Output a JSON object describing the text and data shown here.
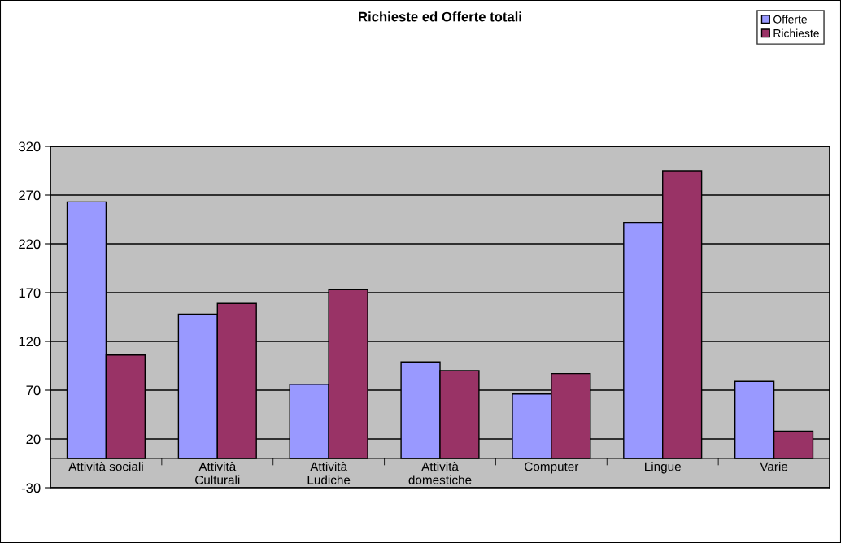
{
  "chart_data": {
    "type": "bar",
    "title": "Richieste ed Offerte totali",
    "categories": [
      "Attività sociali",
      "Attività\nCulturali",
      "Attività\nLudiche",
      "Attività\ndomestiche",
      "Computer",
      "Lingue",
      "Varie"
    ],
    "series": [
      {
        "name": "Offerte",
        "color": "#9999ff",
        "values": [
          263,
          148,
          76,
          99,
          66,
          242,
          79
        ]
      },
      {
        "name": "Richieste",
        "color": "#993366",
        "values": [
          106,
          159,
          173,
          90,
          87,
          295,
          28
        ]
      }
    ],
    "ylim": [
      -30,
      320
    ],
    "yticks": [
      -30,
      20,
      70,
      120,
      170,
      220,
      270,
      320
    ],
    "grid": "y",
    "legend": "top right"
  }
}
